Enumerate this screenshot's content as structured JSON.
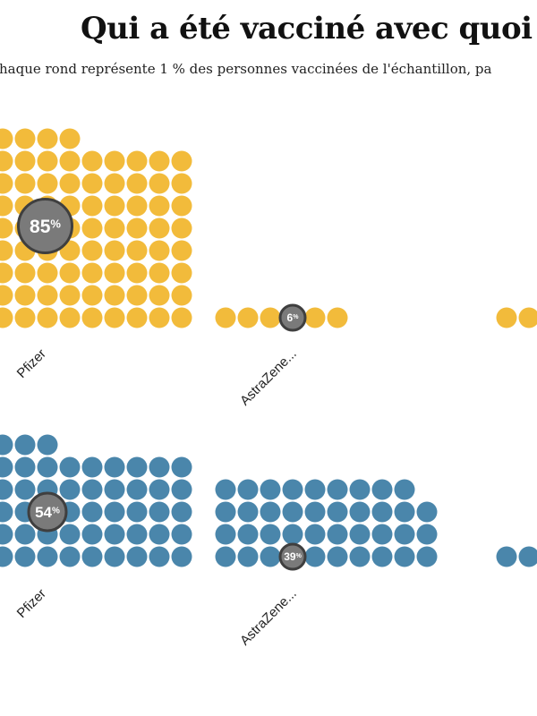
{
  "title": "Qui a été vacciné avec quoi",
  "subtitle": "haque rond représente 1 % des personnes vaccinées de l'échantillon, pa",
  "colors": {
    "row1": "#f2bb3b",
    "row2": "#4a86ab",
    "badge": "#7a7a7a"
  },
  "chart_data": [
    {
      "type": "waffle",
      "unit": "1 dot = 1 %",
      "color": "#f2bb3b",
      "groups": [
        {
          "category": "Pfizer",
          "value": 85,
          "label": "85%"
        },
        {
          "category": "AstraZene...",
          "value": 6,
          "label": "6%"
        },
        {
          "category": "",
          "value": null,
          "label": ""
        }
      ]
    },
    {
      "type": "waffle",
      "unit": "1 dot = 1 %",
      "color": "#4a86ab",
      "groups": [
        {
          "category": "Pfizer",
          "value": 54,
          "label": "54%"
        },
        {
          "category": "AstraZene...",
          "value": 39,
          "label": "39%"
        },
        {
          "category": "",
          "value": null,
          "label": ""
        }
      ]
    }
  ]
}
